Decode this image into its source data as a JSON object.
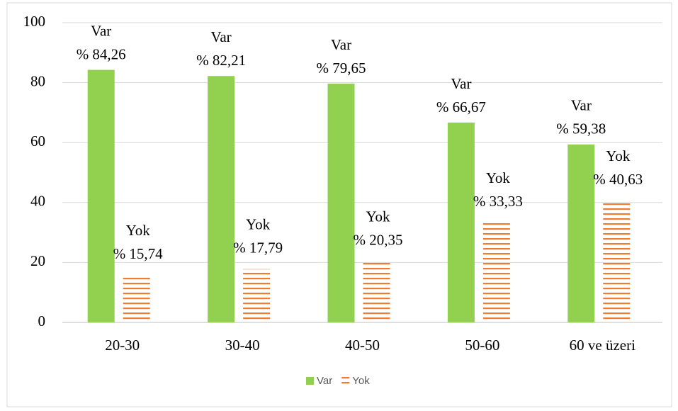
{
  "chart_data": {
    "type": "bar",
    "categories": [
      "20-30",
      "30-40",
      "40-50",
      "50-60",
      "60 ve üzeri"
    ],
    "series": [
      {
        "name": "Var",
        "color": "#92d050",
        "values": [
          84.26,
          82.21,
          79.65,
          66.67,
          59.38
        ],
        "value_labels": [
          "% 84,26",
          "% 82,21",
          "% 79,65",
          "% 66,67",
          "% 59,38"
        ]
      },
      {
        "name": "Yok",
        "color": "#ed7d31",
        "pattern": "horizontal-stripes",
        "values": [
          15.74,
          17.79,
          20.35,
          33.33,
          40.63
        ],
        "value_labels": [
          "% 15,74",
          "% 17,79",
          "% 20,35",
          "% 33,33",
          "% 40,63"
        ]
      }
    ],
    "ylim": [
      0,
      100
    ],
    "yticks": [
      0,
      20,
      40,
      60,
      80,
      100
    ],
    "grid": true,
    "legend": "bottom"
  }
}
